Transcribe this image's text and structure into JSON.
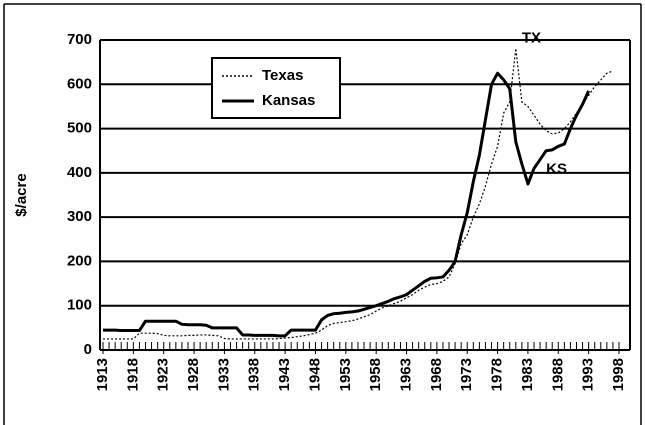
{
  "chart_data": {
    "type": "line",
    "y_label": "$/acre",
    "x": [
      1913,
      1914,
      1915,
      1916,
      1917,
      1918,
      1919,
      1920,
      1921,
      1922,
      1923,
      1924,
      1925,
      1926,
      1927,
      1928,
      1929,
      1930,
      1931,
      1932,
      1933,
      1934,
      1935,
      1936,
      1937,
      1938,
      1939,
      1940,
      1941,
      1942,
      1943,
      1944,
      1945,
      1946,
      1947,
      1948,
      1949,
      1950,
      1951,
      1952,
      1953,
      1954,
      1955,
      1956,
      1957,
      1958,
      1959,
      1960,
      1961,
      1962,
      1963,
      1964,
      1965,
      1966,
      1967,
      1968,
      1969,
      1970,
      1971,
      1972,
      1973,
      1974,
      1975,
      1976,
      1977,
      1978,
      1979,
      1980,
      1981,
      1982,
      1983,
      1984,
      1985,
      1986,
      1987,
      1988,
      1989,
      1990,
      1991,
      1992,
      1993,
      1994,
      1995,
      1996,
      1997,
      1998
    ],
    "series": [
      {
        "name": "Texas",
        "color": "#000000",
        "dash": "dotted",
        "values": [
          25,
          25,
          25,
          25,
          25,
          25,
          38,
          38,
          38,
          37,
          33,
          32,
          32,
          32,
          33,
          33,
          34,
          34,
          33,
          32,
          26,
          25,
          25,
          25,
          25,
          25,
          25,
          25,
          25,
          26,
          27,
          28,
          30,
          32,
          35,
          38,
          45,
          55,
          60,
          62,
          64,
          66,
          70,
          75,
          80,
          88,
          95,
          100,
          105,
          110,
          118,
          125,
          135,
          142,
          148,
          150,
          155,
          165,
          195,
          240,
          260,
          300,
          330,
          370,
          420,
          460,
          535,
          560,
          681,
          560,
          550,
          530,
          510,
          495,
          488,
          490,
          500,
          515,
          535,
          555,
          575,
          595,
          610,
          625,
          630,
          null
        ]
      },
      {
        "name": "Kansas",
        "color": "#000000",
        "dash": "solid",
        "values": [
          45,
          45,
          45,
          44,
          44,
          44,
          44,
          65,
          65,
          65,
          65,
          65,
          65,
          58,
          57,
          57,
          57,
          56,
          50,
          50,
          50,
          50,
          50,
          34,
          34,
          33,
          33,
          33,
          33,
          32,
          32,
          45,
          45,
          45,
          45,
          45,
          68,
          78,
          82,
          83,
          85,
          86,
          88,
          92,
          96,
          100,
          105,
          110,
          116,
          120,
          125,
          135,
          145,
          155,
          162,
          163,
          165,
          180,
          200,
          260,
          310,
          380,
          440,
          520,
          600,
          625,
          610,
          590,
          470,
          420,
          375,
          410,
          430,
          450,
          452,
          460,
          465,
          500,
          530,
          555,
          585,
          null,
          null,
          null,
          null,
          null
        ]
      }
    ],
    "annotations": [
      {
        "text": "TX",
        "x": 1982,
        "y": 681
      },
      {
        "text": "KS",
        "x": 1986,
        "y": 385
      }
    ],
    "xlim": [
      1913,
      1998
    ],
    "xticks": [
      1913,
      1918,
      1923,
      1928,
      1933,
      1938,
      1943,
      1948,
      1953,
      1958,
      1963,
      1968,
      1973,
      1978,
      1983,
      1988,
      1993,
      1998
    ],
    "ylim": [
      0,
      700
    ],
    "yticks": [
      0,
      100,
      200,
      300,
      400,
      500,
      600,
      700
    ],
    "grid": true
  }
}
